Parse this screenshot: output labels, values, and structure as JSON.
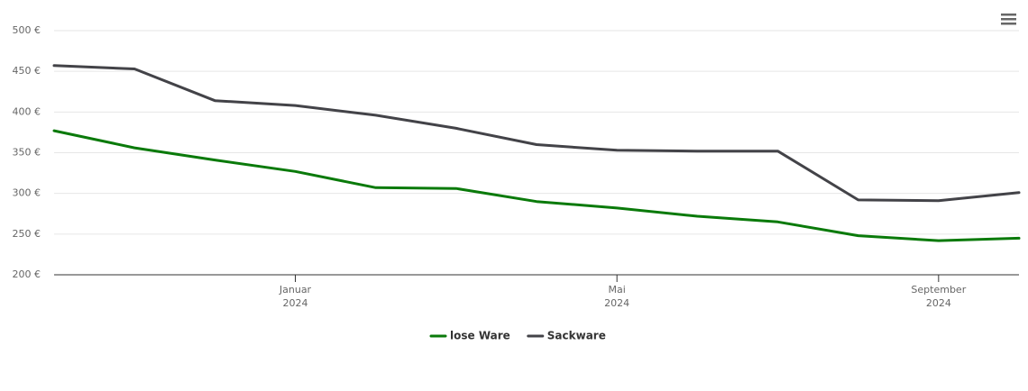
{
  "chart_data": {
    "type": "line",
    "x": [
      "2023-10",
      "2023-11",
      "2023-12",
      "2024-01",
      "2024-02",
      "2024-03",
      "2024-04",
      "2024-05",
      "2024-06",
      "2024-07",
      "2024-08",
      "2024-09",
      "2024-10"
    ],
    "series": [
      {
        "name": "lose Ware",
        "color": "#0a7a0a",
        "values": [
          377,
          356,
          341,
          327,
          307,
          306,
          290,
          282,
          272,
          265,
          248,
          242,
          245
        ]
      },
      {
        "name": "Sackware",
        "color": "#434348",
        "values": [
          457,
          453,
          414,
          408,
          396,
          380,
          360,
          353,
          352,
          352,
          292,
          291,
          301
        ]
      }
    ],
    "xlim": [
      "2023-10",
      "2024-10"
    ],
    "xticks": [
      {
        "value": "2024-01",
        "label": [
          "Januar",
          "2024"
        ]
      },
      {
        "value": "2024-05",
        "label": [
          "Mai",
          "2024"
        ]
      },
      {
        "value": "2024-09",
        "label": [
          "September",
          "2024"
        ]
      }
    ],
    "ylim": [
      200,
      500
    ],
    "yticks": [
      {
        "value": 200,
        "label": "200 €"
      },
      {
        "value": 250,
        "label": "250 €"
      },
      {
        "value": 300,
        "label": "300 €"
      },
      {
        "value": 350,
        "label": "350 €"
      },
      {
        "value": 400,
        "label": "400 €"
      },
      {
        "value": 450,
        "label": "450 €"
      },
      {
        "value": 500,
        "label": "500 €"
      }
    ],
    "grid": true,
    "legend": "bottom"
  }
}
